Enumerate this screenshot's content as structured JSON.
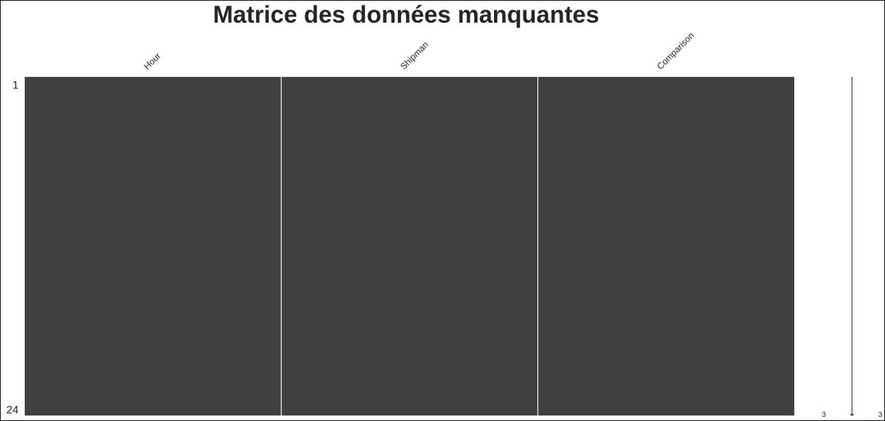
{
  "chart_data": {
    "type": "heatmap",
    "title": "Matrice des données manquantes",
    "columns": [
      "Hour",
      "Shipman",
      "Comparison"
    ],
    "rows": 24,
    "row_tick_labels": [
      "1",
      "24"
    ],
    "missing_values": [
      0,
      0,
      0
    ],
    "present_color": "#404040",
    "missing_color": "#ffffff",
    "sparkline": {
      "min_label": "3",
      "max_label": "3",
      "values": [
        3,
        3,
        3,
        3,
        3,
        3,
        3,
        3,
        3,
        3,
        3,
        3,
        3,
        3,
        3,
        3,
        3,
        3,
        3,
        3,
        3,
        3,
        3,
        3
      ]
    },
    "grid": false
  }
}
